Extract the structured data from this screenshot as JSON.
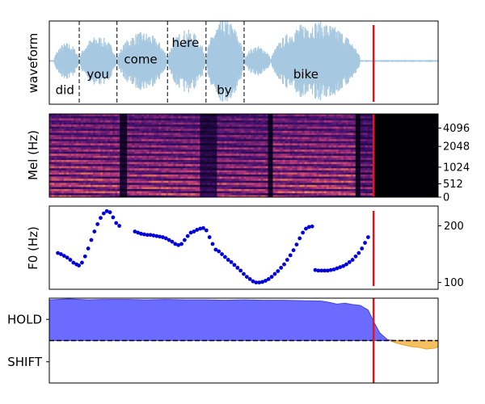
{
  "colors": {
    "waveform": "#a6c8e0",
    "cursor": "#ee1111",
    "f0_points": "#0000dd",
    "hold_fill": "#6b6bff",
    "hold_stroke": "#4444dd",
    "shift_fill": "#f5c060",
    "shift_stroke": "#e8a030"
  },
  "chart_data": [
    {
      "type": "area",
      "ylabel": "waveform",
      "grid": false,
      "time_xlim": [
        0,
        1
      ],
      "cursor_t": 0.834,
      "words": [
        "did",
        "you",
        "come",
        "here",
        "by",
        "bike"
      ],
      "word_boundaries": [
        0.077,
        0.174,
        0.304,
        0.403,
        0.501
      ],
      "segments": [
        {
          "t0": 0.012,
          "t1": 0.077,
          "amp": 0.22
        },
        {
          "t0": 0.077,
          "t1": 0.174,
          "amp": 0.3
        },
        {
          "t0": 0.174,
          "t1": 0.304,
          "amp": 0.35
        },
        {
          "t0": 0.304,
          "t1": 0.403,
          "amp": 0.38
        },
        {
          "t0": 0.403,
          "t1": 0.501,
          "amp": 0.5
        },
        {
          "t0": 0.501,
          "t1": 0.57,
          "amp": 0.18
        },
        {
          "t0": 0.57,
          "t1": 0.8,
          "amp": 0.48
        }
      ]
    },
    {
      "type": "heatmap",
      "ylabel": "Mel (Hz)",
      "yticks": [
        0,
        512,
        1024,
        2048,
        4096
      ],
      "time_xlim": [
        0,
        1
      ],
      "cursor_t": 0.834,
      "silence_after_t": 0.834
    },
    {
      "type": "scatter",
      "ylabel": "F0 (Hz)",
      "ylim": [
        88,
        235
      ],
      "yticks": [
        100,
        200
      ],
      "time_xlim": [
        0,
        1
      ],
      "cursor_t": 0.834,
      "x": [
        0.022,
        0.03,
        0.038,
        0.046,
        0.054,
        0.062,
        0.07,
        0.076,
        0.084,
        0.092,
        0.1,
        0.108,
        0.116,
        0.124,
        0.132,
        0.14,
        0.148,
        0.156,
        0.164,
        0.172,
        0.18,
        0.22,
        0.228,
        0.236,
        0.244,
        0.252,
        0.26,
        0.268,
        0.276,
        0.284,
        0.292,
        0.3,
        0.308,
        0.316,
        0.324,
        0.332,
        0.34,
        0.348,
        0.356,
        0.364,
        0.372,
        0.38,
        0.388,
        0.396,
        0.404,
        0.412,
        0.42,
        0.428,
        0.436,
        0.444,
        0.452,
        0.46,
        0.468,
        0.476,
        0.484,
        0.492,
        0.5,
        0.508,
        0.516,
        0.524,
        0.532,
        0.54,
        0.548,
        0.556,
        0.564,
        0.572,
        0.58,
        0.588,
        0.596,
        0.604,
        0.612,
        0.62,
        0.628,
        0.636,
        0.644,
        0.652,
        0.66,
        0.668,
        0.676,
        0.684,
        0.692,
        0.7,
        0.708,
        0.716,
        0.724,
        0.732,
        0.74,
        0.748,
        0.756,
        0.764,
        0.772,
        0.78,
        0.788,
        0.796,
        0.804,
        0.812,
        0.82
      ],
      "y": [
        152,
        150,
        147,
        144,
        140,
        135,
        132,
        130,
        135,
        146,
        160,
        175,
        190,
        203,
        214,
        222,
        226,
        224,
        215,
        205,
        200,
        190,
        188,
        186,
        185,
        184,
        184,
        183,
        182,
        181,
        180,
        178,
        175,
        172,
        168,
        166,
        168,
        175,
        182,
        188,
        190,
        193,
        195,
        196,
        192,
        180,
        168,
        158,
        155,
        150,
        145,
        140,
        136,
        131,
        126,
        121,
        115,
        110,
        106,
        102,
        100,
        100,
        101,
        103,
        106,
        110,
        115,
        120,
        126,
        132,
        140,
        148,
        157,
        167,
        178,
        188,
        195,
        198,
        199,
        122,
        121,
        121,
        121,
        121,
        122,
        123,
        125,
        127,
        129,
        132,
        136,
        140,
        146,
        152,
        160,
        170,
        180
      ]
    },
    {
      "type": "area",
      "yticks_labels": [
        "HOLD",
        "SHIFT"
      ],
      "ylim": [
        -1,
        1
      ],
      "threshold": 0,
      "time_xlim": [
        0,
        1
      ],
      "cursor_t": 0.834,
      "x": [
        0.0,
        0.05,
        0.1,
        0.15,
        0.2,
        0.25,
        0.3,
        0.35,
        0.4,
        0.45,
        0.5,
        0.55,
        0.6,
        0.65,
        0.7,
        0.72,
        0.74,
        0.76,
        0.78,
        0.8,
        0.82,
        0.834,
        0.85,
        0.87,
        0.89,
        0.91,
        0.93,
        0.95,
        0.97,
        0.99,
        1.0
      ],
      "y": [
        0.96,
        0.98,
        0.96,
        0.97,
        0.97,
        0.96,
        0.97,
        0.96,
        0.96,
        0.95,
        0.96,
        0.95,
        0.95,
        0.94,
        0.93,
        0.9,
        0.86,
        0.88,
        0.85,
        0.83,
        0.72,
        0.45,
        0.18,
        0.02,
        -0.05,
        -0.1,
        -0.14,
        -0.16,
        -0.2,
        -0.18,
        -0.15
      ]
    }
  ]
}
